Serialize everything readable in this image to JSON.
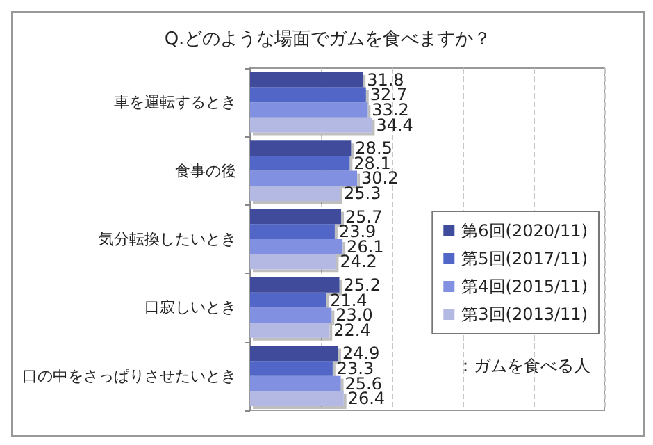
{
  "chart_data": {
    "type": "bar",
    "orientation": "horizontal",
    "title": "Q.どのような場面でガムを食べますか？",
    "categories": [
      "車を運転するとき",
      "食事の後",
      "気分転換したいとき",
      "口寂しいとき",
      "口の中をさっぱりさせたいとき"
    ],
    "series": [
      {
        "name": "第6回(2020/11)",
        "color": "#3f4c9c",
        "values": [
          31.8,
          28.5,
          25.7,
          25.2,
          24.9
        ],
        "value_labels": [
          "31.8",
          "28.5",
          "25.7",
          "25.2",
          "24.9"
        ]
      },
      {
        "name": "第5回(2017/11)",
        "color": "#5166c6",
        "values": [
          32.7,
          28.1,
          23.9,
          21.4,
          23.3
        ],
        "value_labels": [
          "32.7",
          "28.1",
          "23.9",
          "21.4",
          "23.3"
        ]
      },
      {
        "name": "第4回(2015/11)",
        "color": "#8190e0",
        "values": [
          33.2,
          30.2,
          26.1,
          23.0,
          25.6
        ],
        "value_labels": [
          "33.2",
          "30.2",
          "26.1",
          "23.0",
          "25.6"
        ]
      },
      {
        "name": "第3回(2013/11)",
        "color": "#b4b9e4",
        "values": [
          34.4,
          25.3,
          24.2,
          22.4,
          26.4
        ],
        "value_labels": [
          "34.4",
          "25.3",
          "24.2",
          "22.4",
          "26.4"
        ]
      }
    ],
    "xlim": [
      0,
      100
    ],
    "xticks": [
      {
        "value": 0,
        "label": null
      },
      {
        "value": 20,
        "label": null
      },
      {
        "value": 40,
        "label": null
      },
      {
        "value": 60,
        "label": null
      },
      {
        "value": 80,
        "label": null
      },
      {
        "value": 100,
        "label": null
      }
    ],
    "tick_labels": "y",
    "grid": "x",
    "legend": "right",
    "annotations": [
      "：ガムを食べる人"
    ]
  }
}
